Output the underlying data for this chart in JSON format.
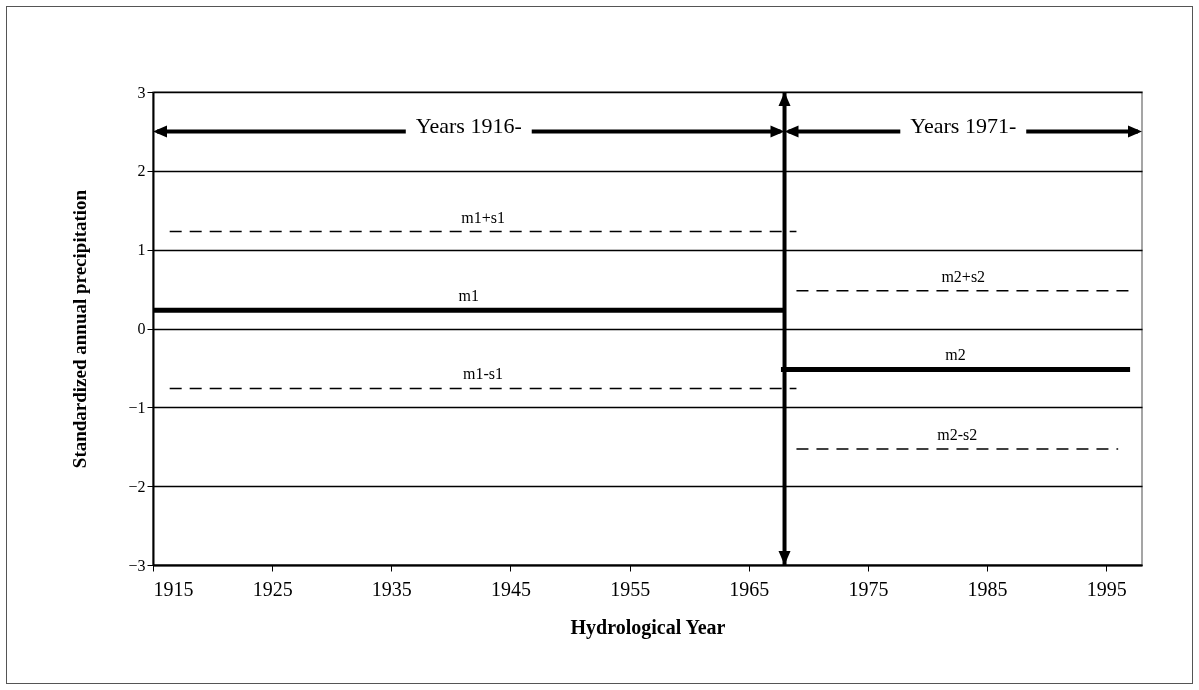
{
  "chart_data": {
    "type": "line",
    "xlabel": "Hydrological Year",
    "ylabel": "Standardized annual precipitation",
    "xlim": [
      1915,
      1998
    ],
    "xticks": [
      1915,
      1925,
      1935,
      1945,
      1955,
      1965,
      1975,
      1985,
      1995
    ],
    "ylim": [
      -3,
      3
    ],
    "yticks": [
      -3,
      -2,
      -1,
      0,
      1,
      2,
      3
    ],
    "grid": "y",
    "series": [
      {
        "name": "m1",
        "color": "#000000",
        "line_style": "solid",
        "x": [
          1915,
          1968
        ],
        "values": [
          0.23,
          0.23
        ]
      },
      {
        "name": "m1+s1",
        "color": "#000000",
        "line_style": "dashed",
        "x": [
          1916.4,
          1969
        ],
        "values": [
          1.23,
          1.23
        ]
      },
      {
        "name": "m1-s1",
        "color": "#000000",
        "line_style": "dashed",
        "x": [
          1916.4,
          1969
        ],
        "values": [
          -0.76,
          -0.76
        ]
      },
      {
        "name": "m2",
        "color": "#000000",
        "line_style": "solid",
        "x": [
          1967.7,
          1997
        ],
        "values": [
          -0.52,
          -0.52
        ]
      },
      {
        "name": "m2+s2",
        "color": "#000000",
        "line_style": "dashed",
        "x": [
          1969,
          1997
        ],
        "values": [
          0.48,
          0.48
        ]
      },
      {
        "name": "m2-s2",
        "color": "#000000",
        "line_style": "dashed",
        "x": [
          1969,
          1996
        ],
        "values": [
          -1.53,
          -1.53
        ]
      }
    ],
    "ref_lines": [
      {
        "axis": "x",
        "value": 1968,
        "label": null
      }
    ],
    "annotations": [
      {
        "text": "Years 1916-",
        "x": 1968,
        "y": 2.5
      },
      {
        "text": "Years 1971-",
        "x": 1968,
        "y": 2.5
      }
    ]
  }
}
